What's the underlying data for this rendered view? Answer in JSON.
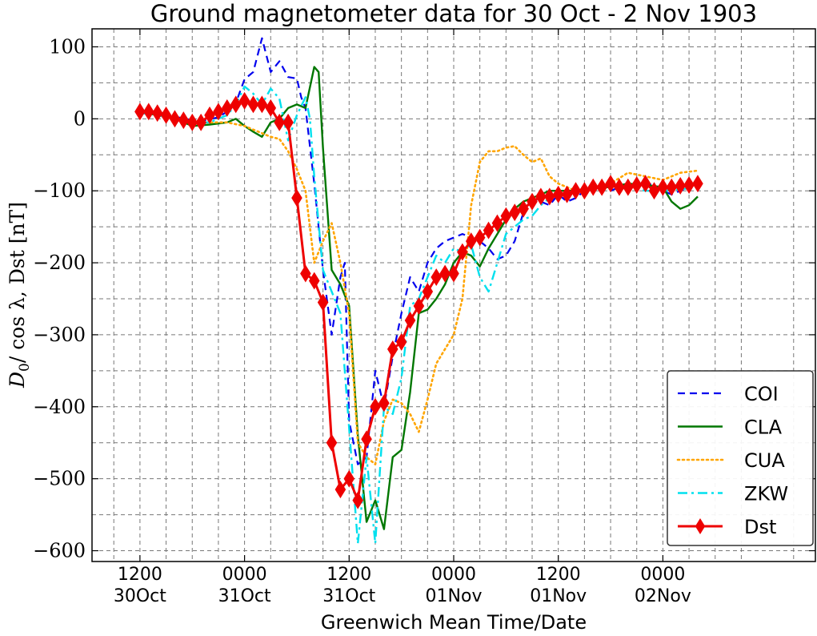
{
  "chart_data": {
    "type": "line",
    "title": "Ground magnetometer data for 30 Oct - 2 Nov 1903",
    "xlabel": "Greenwich Mean Time/Date",
    "ylabel": "D0/cosλ, Dst [nT]",
    "ylabel_parts": {
      "symbol": "D",
      "subscript": "0",
      "rest": "/ cos λ, Dst [nT]"
    },
    "x_unit": "hours since 1903-10-30 00:00 GMT",
    "xlim": [
      6.5,
      89.5
    ],
    "ylim": [
      -615,
      125
    ],
    "yticks": [
      100,
      0,
      -100,
      -200,
      -300,
      -400,
      -500,
      -600
    ],
    "ytick_labels": [
      "100",
      "0",
      "−100",
      "−200",
      "−300",
      "−400",
      "−500",
      "−600"
    ],
    "xticks": [
      {
        "x": 12,
        "line1": "1200",
        "line2": "30Oct"
      },
      {
        "x": 24,
        "line1": "0000",
        "line2": "31Oct"
      },
      {
        "x": 36,
        "line1": "1200",
        "line2": "31Oct"
      },
      {
        "x": 48,
        "line1": "0000",
        "line2": "01Nov"
      },
      {
        "x": 60,
        "line1": "1200",
        "line2": "01Nov"
      },
      {
        "x": 72,
        "line1": "0000",
        "line2": "02Nov"
      }
    ],
    "grid": true,
    "legend_position": "bottom-right",
    "series": [
      {
        "name": "COI",
        "color": "#0000ee",
        "style": "dashed",
        "x": [
          12,
          14,
          16,
          18,
          19,
          21,
          22,
          23,
          24,
          25,
          26,
          27,
          28,
          29,
          30,
          30.5,
          31,
          32,
          33,
          34,
          35,
          35.5,
          36,
          37,
          38,
          39,
          40,
          41,
          41.5,
          42,
          43,
          44,
          45,
          46,
          47,
          48,
          49,
          50,
          51,
          52,
          53,
          54,
          55,
          56,
          57,
          58,
          59,
          60,
          61,
          62,
          63,
          64,
          65,
          66,
          67,
          68,
          69,
          70,
          71,
          72,
          73,
          74,
          75
        ],
        "y": [
          10,
          8,
          3,
          -2,
          -3,
          2,
          10,
          22,
          55,
          65,
          112,
          65,
          80,
          58,
          56,
          30,
          15,
          -90,
          -210,
          -300,
          -220,
          -200,
          -420,
          -480,
          -470,
          -350,
          -400,
          -330,
          -300,
          -270,
          -220,
          -240,
          -200,
          -180,
          -170,
          -165,
          -160,
          -165,
          -170,
          -180,
          -195,
          -190,
          -170,
          -130,
          -110,
          -115,
          -120,
          -105,
          -115,
          -110,
          -100,
          -90,
          -95,
          -100,
          -95,
          -92,
          -95,
          -90,
          -92,
          -100,
          -105,
          -100,
          -95
        ]
      },
      {
        "name": "CLA",
        "color": "#007700",
        "style": "solid",
        "x": [
          12,
          14,
          16,
          18,
          20,
          22,
          23,
          24,
          25,
          26,
          27,
          28,
          29,
          30,
          31,
          32,
          32.5,
          33,
          34,
          35,
          36,
          37,
          38,
          39,
          40,
          41,
          42,
          43,
          44,
          45,
          46,
          47,
          48,
          49,
          50,
          51,
          52,
          53,
          54,
          55,
          56,
          57,
          58,
          59,
          60,
          62,
          64,
          66,
          68,
          70,
          72,
          73,
          74,
          75,
          76
        ],
        "y": [
          10,
          5,
          0,
          -10,
          -8,
          -5,
          0,
          -10,
          -18,
          -25,
          -5,
          0,
          15,
          20,
          15,
          72,
          65,
          -40,
          -210,
          -230,
          -260,
          -440,
          -560,
          -530,
          -570,
          -470,
          -460,
          -380,
          -270,
          -265,
          -250,
          -230,
          -200,
          -185,
          -190,
          -205,
          -180,
          -160,
          -140,
          -125,
          -115,
          -110,
          -105,
          -100,
          -100,
          -100,
          -95,
          -95,
          -90,
          -92,
          -95,
          -115,
          -125,
          -120,
          -108
        ]
      },
      {
        "name": "CUA",
        "color": "#ffa500",
        "style": "dotted",
        "x": [
          12,
          14,
          16,
          18,
          20,
          22,
          24,
          25,
          26,
          27,
          28,
          29,
          30,
          31,
          32,
          33,
          34,
          35,
          36,
          37,
          38,
          39,
          40,
          41,
          42,
          43,
          44,
          45,
          46,
          47,
          48,
          49,
          50,
          51,
          52,
          53,
          54,
          55,
          56,
          57,
          58,
          59,
          60,
          61,
          62,
          64,
          66,
          68,
          70,
          72,
          74,
          76
        ],
        "y": [
          10,
          5,
          0,
          -5,
          -5,
          -5,
          -10,
          -15,
          -20,
          -25,
          -28,
          -45,
          -70,
          -100,
          -200,
          -170,
          -145,
          -200,
          -270,
          -450,
          -470,
          -480,
          -420,
          -390,
          -395,
          -410,
          -435,
          -390,
          -340,
          -320,
          -300,
          -250,
          -120,
          -60,
          -45,
          -45,
          -40,
          -38,
          -50,
          -60,
          -55,
          -80,
          -90,
          -95,
          -100,
          -95,
          -90,
          -75,
          -80,
          -85,
          -75,
          -72
        ]
      },
      {
        "name": "ZKW",
        "color": "#00e0ee",
        "style": "dashdot",
        "x": [
          12,
          14,
          16,
          18,
          20,
          22,
          23,
          24,
          25,
          26,
          27,
          28,
          29,
          30,
          31,
          31.5,
          32,
          33,
          34,
          35,
          36,
          37,
          38,
          39,
          40,
          41,
          42,
          43,
          44,
          45,
          46,
          47,
          48,
          49,
          50,
          51,
          52,
          53,
          54,
          55,
          56,
          57,
          58,
          59,
          60,
          62,
          64,
          66,
          68,
          70,
          72,
          74,
          76
        ],
        "y": [
          8,
          5,
          0,
          -5,
          -5,
          5,
          20,
          45,
          35,
          20,
          42,
          28,
          -30,
          5,
          30,
          0,
          -80,
          -210,
          -240,
          -270,
          -430,
          -590,
          -470,
          -590,
          -400,
          -410,
          -360,
          -260,
          -250,
          -220,
          -190,
          -200,
          -180,
          -185,
          -175,
          -220,
          -240,
          -200,
          -160,
          -150,
          -140,
          -135,
          -120,
          -110,
          -105,
          -100,
          -95,
          -92,
          -95,
          -100,
          -100,
          -98,
          -95
        ]
      },
      {
        "name": "Dst",
        "color": "#ee0000",
        "style": "solid-diamond",
        "x": [
          12,
          13,
          14,
          15,
          16,
          17,
          18,
          19,
          20,
          21,
          22,
          23,
          24,
          25,
          26,
          27,
          28,
          29,
          30,
          31,
          32,
          33,
          34,
          35,
          36,
          37,
          38,
          39,
          40,
          41,
          42,
          43,
          44,
          45,
          46,
          47,
          48,
          49,
          50,
          51,
          52,
          53,
          54,
          55,
          56,
          57,
          58,
          59,
          60,
          61,
          62,
          63,
          64,
          65,
          66,
          67,
          68,
          69,
          70,
          71,
          72,
          73,
          74,
          75,
          76
        ],
        "y": [
          10,
          10,
          8,
          5,
          0,
          -2,
          -5,
          -5,
          5,
          10,
          15,
          20,
          25,
          20,
          20,
          15,
          -5,
          -5,
          -110,
          -215,
          -225,
          -255,
          -450,
          -515,
          -500,
          -530,
          -445,
          -400,
          -395,
          -320,
          -310,
          -280,
          -260,
          -240,
          -220,
          -215,
          -215,
          -185,
          -170,
          -165,
          -155,
          -145,
          -135,
          -130,
          -125,
          -115,
          -108,
          -108,
          -105,
          -105,
          -100,
          -100,
          -95,
          -95,
          -90,
          -95,
          -95,
          -92,
          -90,
          -100,
          -95,
          -95,
          -93,
          -92,
          -90
        ]
      }
    ]
  }
}
